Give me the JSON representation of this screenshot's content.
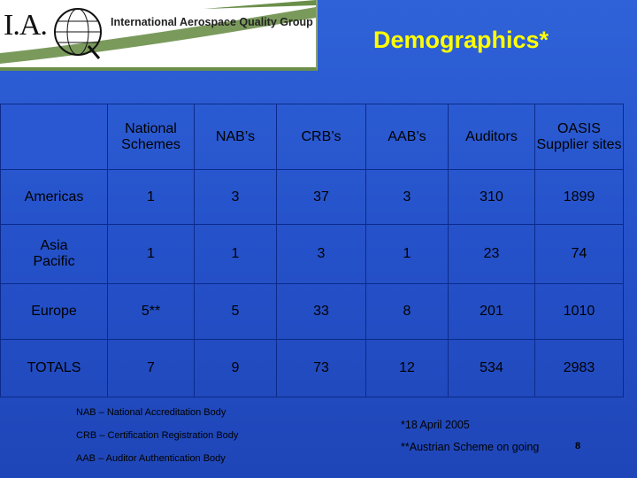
{
  "logo": {
    "mark": "I.A.",
    "org_name": "International Aerospace Quality Group"
  },
  "title": "Demographics*",
  "table": {
    "headers": [
      "National Schemes",
      "NAB’s",
      "CRB’s",
      "AAB’s",
      "Auditors",
      "OASIS Supplier sites"
    ],
    "rows": [
      {
        "label": "Americas",
        "values": [
          "1",
          "3",
          "37",
          "3",
          "310",
          "1899"
        ]
      },
      {
        "label": "Asia Pacific",
        "values": [
          "1",
          "1",
          "3",
          "1",
          "23",
          "74"
        ]
      },
      {
        "label": "Europe",
        "values": [
          "5**",
          "5",
          "33",
          "8",
          "201",
          "1010"
        ]
      },
      {
        "label": "TOTALS",
        "values": [
          "7",
          "9",
          "73",
          "12",
          "534",
          "2983"
        ]
      }
    ]
  },
  "notes": [
    "NAB – National Accreditation Body",
    "CRB – Certification Registration Body",
    "AAB – Auditor Authentication Body"
  ],
  "footnote_date": "*18 April 2005",
  "footnote_austria": "**Austrian Scheme on going",
  "page_number": "8",
  "colors": {
    "background": "#2a58d2",
    "title": "#ffff00",
    "grid": "#0c2a8a"
  }
}
